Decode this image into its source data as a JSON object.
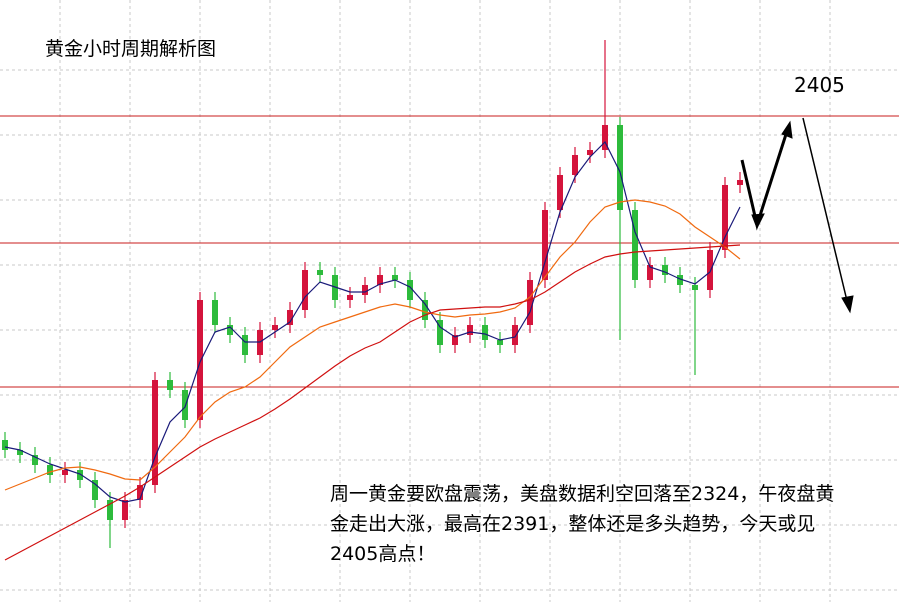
{
  "chart_data": {
    "type": "candlestick",
    "title": "黄金小时周期解析图",
    "target_label": "2405",
    "annotation_lines": [
      "周一黄金要欧盘震荡，美盘数据利空回落至2324，午夜盘黄",
      "金走出大涨，最高在2391，整体还是多头趋势，今天或见",
      "2405高点！"
    ],
    "ylim": [
      0,
      60.2
    ],
    "up_color": "#d4143c",
    "down_color": "#2dbb3c",
    "open": [
      16.2,
      15.2,
      14.7,
      13.7,
      12.7,
      13.2,
      12.2,
      10.2,
      8.2,
      10.2,
      11.7,
      22.2,
      21.2,
      18.2,
      30.2,
      27.7,
      26.7,
      24.7,
      27.2,
      27.7,
      29.2,
      33.2,
      32.7,
      30.2,
      30.7,
      31.7,
      32.7,
      32.2,
      30.2,
      28.2,
      25.7,
      26.7,
      27.7,
      26.2,
      25.7,
      27.7,
      32.2,
      39.2,
      42.7,
      44.7,
      45.2,
      47.7,
      39.2,
      32.2,
      33.7,
      32.7,
      31.7,
      31.2,
      35.2,
      41.7
    ],
    "high": [
      17.0,
      16.0,
      15.5,
      14.5,
      14.0,
      14.0,
      13.0,
      11.0,
      11.0,
      12.5,
      23.0,
      23.0,
      22.0,
      31.0,
      31.0,
      28.5,
      27.5,
      28.0,
      28.5,
      30.0,
      34.0,
      34.0,
      33.5,
      31.5,
      32.5,
      33.5,
      33.5,
      33.0,
      31.0,
      29.0,
      27.5,
      28.5,
      28.5,
      27.0,
      28.5,
      33.0,
      40.0,
      43.5,
      45.5,
      46.0,
      56.2,
      48.5,
      40.0,
      34.5,
      34.5,
      33.5,
      32.5,
      36.0,
      42.5,
      43.0
    ],
    "low": [
      14.4,
      13.9,
      12.9,
      11.9,
      11.9,
      11.4,
      9.4,
      5.4,
      7.4,
      9.4,
      10.9,
      20.4,
      17.4,
      17.4,
      26.9,
      25.9,
      23.9,
      23.9,
      26.4,
      26.9,
      28.4,
      31.9,
      29.4,
      29.4,
      29.9,
      30.9,
      31.4,
      29.4,
      27.4,
      24.9,
      24.9,
      25.9,
      25.4,
      24.9,
      24.9,
      26.9,
      31.4,
      38.4,
      41.9,
      43.9,
      44.4,
      26.2,
      31.4,
      31.4,
      31.9,
      30.9,
      22.7,
      30.4,
      34.4,
      40.9
    ],
    "close": [
      15.2,
      14.7,
      13.7,
      12.7,
      13.2,
      12.2,
      10.2,
      8.2,
      10.2,
      11.7,
      22.2,
      21.2,
      18.2,
      30.2,
      27.7,
      26.7,
      24.7,
      27.2,
      27.7,
      29.2,
      33.2,
      32.7,
      30.2,
      30.7,
      31.7,
      32.7,
      32.2,
      30.2,
      28.2,
      25.7,
      26.7,
      27.7,
      26.2,
      25.7,
      27.7,
      32.2,
      39.2,
      42.7,
      44.7,
      45.2,
      47.7,
      39.2,
      32.2,
      33.7,
      32.7,
      31.7,
      31.2,
      35.2,
      41.7,
      42.2
    ],
    "series": [
      {
        "color": "#1a1a7a",
        "values": [
          15.5,
          15.2,
          14.5,
          13.8,
          13.3,
          12.8,
          11.8,
          10.5,
          10.0,
          10.3,
          14.5,
          18.0,
          19.5,
          24.0,
          27.0,
          27.5,
          26.0,
          26.0,
          27.0,
          28.0,
          30.5,
          32.0,
          31.5,
          31.0,
          31.0,
          31.8,
          32.2,
          31.5,
          29.8,
          27.5,
          26.5,
          27.0,
          26.8,
          26.2,
          26.5,
          29.0,
          34.0,
          39.0,
          42.5,
          44.5,
          46.0,
          43.0,
          37.0,
          33.5,
          33.0,
          32.3,
          31.8,
          33.0,
          36.5,
          39.5
        ]
      },
      {
        "color": "#f06a10",
        "values": [
          11.2,
          11.8,
          12.4,
          13.0,
          13.4,
          13.5,
          13.2,
          12.8,
          12.3,
          12.2,
          13.5,
          15.0,
          16.5,
          18.5,
          20.0,
          21.0,
          21.5,
          22.5,
          24.0,
          25.5,
          26.5,
          27.5,
          28.0,
          28.5,
          29.0,
          29.5,
          29.8,
          29.5,
          29.0,
          28.7,
          28.5,
          28.7,
          28.8,
          29.0,
          29.4,
          30.5,
          32.5,
          34.5,
          36.0,
          38.0,
          39.5,
          40.0,
          40.2,
          40.0,
          39.6,
          38.8,
          37.5,
          36.5,
          35.5,
          34.3
        ]
      },
      {
        "color": "#d01010",
        "values": [
          4.2,
          5.0,
          5.8,
          6.6,
          7.4,
          8.2,
          9.0,
          9.8,
          10.6,
          11.5,
          12.5,
          13.5,
          14.5,
          15.5,
          16.3,
          17.0,
          17.7,
          18.4,
          19.3,
          20.3,
          21.4,
          22.5,
          23.6,
          24.6,
          25.4,
          26.0,
          27.0,
          28.0,
          28.7,
          29.2,
          29.3,
          29.4,
          29.5,
          29.5,
          29.8,
          30.2,
          31.0,
          32.0,
          33.0,
          33.8,
          34.5,
          34.8,
          35.0,
          35.1,
          35.2,
          35.3,
          35.4,
          35.5,
          35.6,
          35.7
        ]
      }
    ],
    "levels": [
      48.6,
      35.9,
      21.5
    ],
    "level_color": "#c81e1e"
  }
}
